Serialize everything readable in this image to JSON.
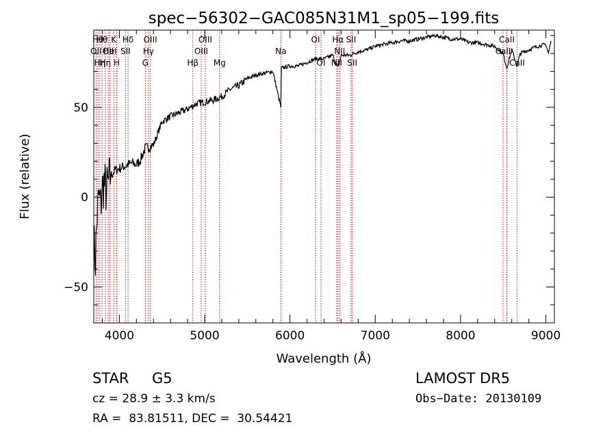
{
  "chart_data": {
    "type": "line",
    "title": "spec−56302−GAC085N31M1_sp05−199.fits",
    "xlabel": "Wavelength (Å)",
    "ylabel": "Flux (relative)",
    "xlim": [
      3700,
      9100
    ],
    "ylim": [
      -70,
      93
    ],
    "x_ticks": [
      4000,
      5000,
      6000,
      7000,
      8000,
      9000
    ],
    "x_tick_labels": [
      "4000",
      "5000",
      "6000",
      "7000",
      "8000",
      "9000"
    ],
    "y_ticks": [
      -50,
      0,
      50
    ],
    "y_tick_labels": [
      "−50",
      "0",
      "50"
    ],
    "grid": false,
    "legend": "none",
    "line_color": "#000000",
    "marker_color": "#cc0000",
    "series": [
      {
        "x": [
          3700,
          3720,
          3740,
          3760,
          3780,
          3800,
          3820,
          3850,
          3900,
          3950,
          4000,
          4050,
          4100,
          4150,
          4200,
          4250,
          4300,
          4350,
          4400,
          4500,
          4600,
          4700,
          4800,
          4900,
          5000,
          5100,
          5200,
          5300,
          5400,
          5500,
          5600,
          5700,
          5800,
          5893,
          5900,
          6000,
          6100,
          6200,
          6300,
          6400,
          6500,
          6563,
          6600,
          6700,
          6800,
          6900,
          7000,
          7100,
          7200,
          7300,
          7400,
          7500,
          7600,
          7700,
          7800,
          7900,
          8000,
          8100,
          8200,
          8300,
          8400,
          8498,
          8542,
          8600,
          8662,
          8700,
          8800,
          8900,
          9000,
          9030,
          9060
        ],
        "y": [
          -25,
          -35,
          -10,
          0,
          -5,
          5,
          8,
          3,
          12,
          15,
          16,
          17,
          18,
          19,
          18,
          21,
          27,
          28,
          29,
          42,
          45,
          47,
          49,
          52,
          53,
          54,
          56,
          60,
          62,
          66,
          68,
          69,
          70,
          50,
          72,
          73,
          73,
          75,
          77,
          77,
          79,
          72,
          79,
          79,
          81,
          82,
          84,
          85,
          86,
          87,
          87,
          88,
          89,
          90,
          89,
          88,
          88,
          86,
          86,
          85,
          84,
          80,
          72,
          82,
          73,
          80,
          82,
          84,
          85,
          80,
          87
        ]
      }
    ],
    "lines": [
      {
        "x": 3727,
        "label": "OII",
        "row": 2
      },
      {
        "x": 3750,
        "label": "Hθ",
        "row": 1
      },
      {
        "x": 3771,
        "label": "Hη",
        "row": 3
      },
      {
        "x": 3798,
        "label": "Hθ",
        "row": 1
      },
      {
        "x": 3835,
        "label": "Hη",
        "row": 3
      },
      {
        "x": 3869,
        "label": "OII",
        "row": 2
      },
      {
        "x": 3889,
        "label": "HeI",
        "row": 2
      },
      {
        "x": 3934,
        "label": "K",
        "row": 1
      },
      {
        "x": 3969,
        "label": "H",
        "row": 3
      },
      {
        "x": 4072,
        "label": "SII",
        "row": 2
      },
      {
        "x": 4102,
        "label": "Hδ",
        "row": 1
      },
      {
        "x": 4304,
        "label": "G",
        "row": 3
      },
      {
        "x": 4341,
        "label": "Hγ",
        "row": 2
      },
      {
        "x": 4363,
        "label": "OIII",
        "row": 1
      },
      {
        "x": 4861,
        "label": "Hβ",
        "row": 3
      },
      {
        "x": 4959,
        "label": "OIII",
        "row": 2
      },
      {
        "x": 5007,
        "label": "OIII",
        "row": 1
      },
      {
        "x": 5175,
        "label": "Mg",
        "row": 3
      },
      {
        "x": 5893,
        "label": "Na",
        "row": 2
      },
      {
        "x": 6300,
        "label": "OI",
        "row": 1
      },
      {
        "x": 6364,
        "label": "OI",
        "row": 3
      },
      {
        "x": 6548,
        "label": "NII",
        "row": 3
      },
      {
        "x": 6563,
        "label": "Hα",
        "row": 1
      },
      {
        "x": 6583,
        "label": "NII",
        "row": 2
      },
      {
        "x": 6716,
        "label": "SII",
        "row": 1
      },
      {
        "x": 6731,
        "label": "SII",
        "row": 3
      },
      {
        "x": 8498,
        "label": "CaII",
        "row": 2
      },
      {
        "x": 8542,
        "label": "CaII",
        "row": 1
      },
      {
        "x": 8662,
        "label": "CaII",
        "row": 3
      }
    ]
  },
  "info": {
    "class_label": "STAR",
    "subclass_label": "G5",
    "survey": "LAMOST DR5",
    "cz": "cz = 28.9 ± 3.3 km/s",
    "obs_date": "Obs−Date: 20130109",
    "coords": "RA =  83.81511, DEC =  30.54421"
  }
}
